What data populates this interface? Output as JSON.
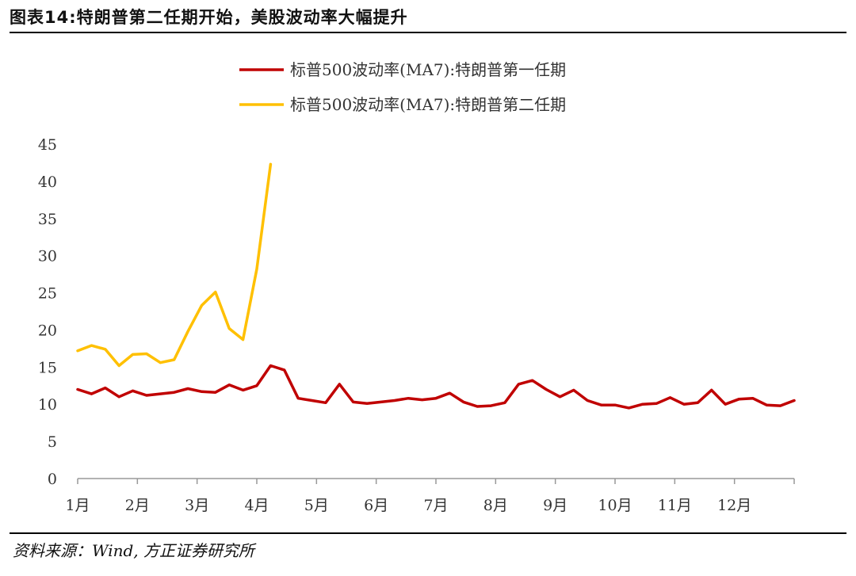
{
  "figure": {
    "title": "图表14:特朗普第二任期开始，美股波动率大幅提升",
    "source": "资料来源：Wind, 方正证券研究所"
  },
  "chart_data": {
    "type": "line",
    "xlabel": "",
    "ylabel": "",
    "ylim": [
      0,
      45
    ],
    "yticks": [
      0,
      5,
      10,
      15,
      20,
      25,
      30,
      35,
      40,
      45
    ],
    "month_labels": [
      "1月",
      "2月",
      "3月",
      "4月",
      "5月",
      "6月",
      "7月",
      "8月",
      "9月",
      "10月",
      "11月",
      "12月"
    ],
    "x_week_range": [
      0,
      52
    ],
    "grid": false,
    "legend_position": "top-center",
    "series": [
      {
        "name": "标普500波动率(MA7):特朗普第一任期",
        "color": "#C00000",
        "x": [
          0,
          1,
          2,
          3,
          4,
          5,
          6,
          7,
          8,
          9,
          10,
          11,
          12,
          13,
          14,
          15,
          16,
          17,
          18,
          19,
          20,
          21,
          22,
          23,
          24,
          25,
          26,
          27,
          28,
          29,
          30,
          31,
          32,
          33,
          34,
          35,
          36,
          37,
          38,
          39,
          40,
          41,
          42,
          43,
          44,
          45,
          46,
          47,
          48,
          49,
          50,
          51,
          52
        ],
        "values": [
          12.0,
          11.4,
          12.2,
          11.0,
          11.8,
          11.2,
          11.4,
          11.6,
          12.1,
          11.7,
          11.6,
          12.6,
          11.9,
          12.5,
          15.2,
          14.6,
          10.8,
          10.5,
          10.2,
          12.7,
          10.3,
          10.1,
          10.3,
          10.5,
          10.8,
          10.6,
          10.8,
          11.5,
          10.3,
          9.7,
          9.8,
          10.2,
          12.7,
          13.2,
          12.0,
          11.0,
          11.9,
          10.5,
          9.9,
          9.9,
          9.5,
          10.0,
          10.1,
          10.9,
          10.0,
          10.2,
          11.9,
          10.0,
          10.7,
          10.8,
          9.9,
          9.8,
          10.5
        ]
      },
      {
        "name": "标普500波动率(MA7):特朗普第二任期",
        "color": "#FFC000",
        "x": [
          0,
          1,
          2,
          3,
          4,
          5,
          6,
          7,
          8,
          9,
          10,
          11,
          12,
          13,
          14
        ],
        "values": [
          17.2,
          17.9,
          17.4,
          15.2,
          16.7,
          16.8,
          15.6,
          16.0,
          19.8,
          23.3,
          25.1,
          20.2,
          18.7,
          28.2,
          42.3
        ]
      }
    ]
  }
}
